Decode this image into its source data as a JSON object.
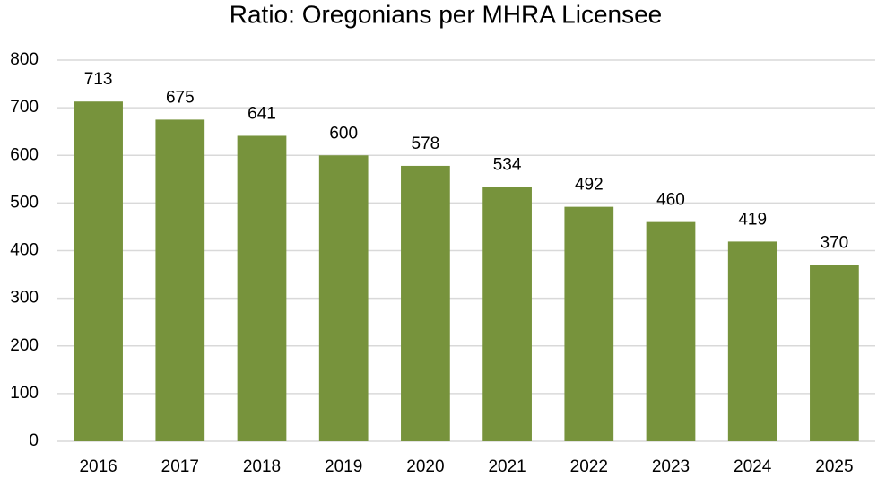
{
  "chart_data": {
    "type": "bar",
    "title": "Ratio: Oregonians per MHRA Licensee",
    "categories": [
      "2016",
      "2017",
      "2018",
      "2019",
      "2020",
      "2021",
      "2022",
      "2023",
      "2024",
      "2025"
    ],
    "values": [
      713,
      675,
      641,
      600,
      578,
      534,
      492,
      460,
      419,
      370
    ],
    "color": "#77933c",
    "ylim": [
      0,
      800
    ],
    "yticks": [
      0,
      100,
      200,
      300,
      400,
      500,
      600,
      700,
      800
    ],
    "grid": true
  }
}
